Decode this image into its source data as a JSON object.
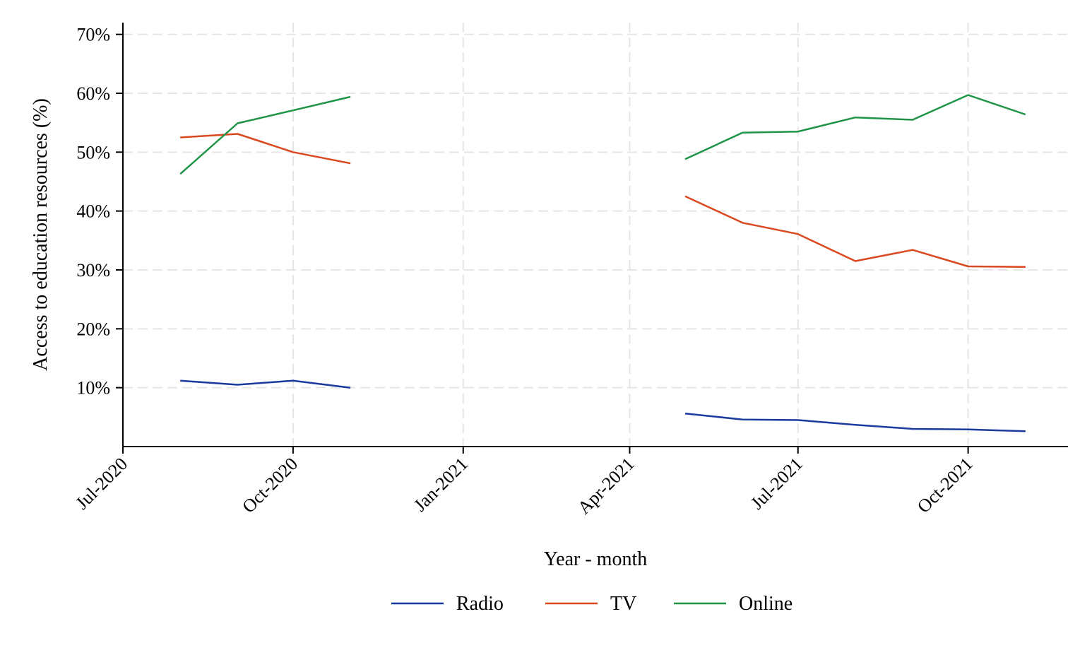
{
  "chart_data": {
    "type": "line",
    "title": "",
    "xlabel": "Year - month",
    "ylabel": "Access to education resources (%)",
    "ylim": [
      0,
      72
    ],
    "xlim": [
      "2020-07-01",
      "2021-11-24"
    ],
    "grid": true,
    "legend_position": "bottom",
    "y_ticks": [
      {
        "value": 10,
        "label": "10%"
      },
      {
        "value": 20,
        "label": "20%"
      },
      {
        "value": 30,
        "label": "30%"
      },
      {
        "value": 40,
        "label": "40%"
      },
      {
        "value": 50,
        "label": "50%"
      },
      {
        "value": 60,
        "label": "60%"
      },
      {
        "value": 70,
        "label": "70%"
      }
    ],
    "x_ticks": [
      {
        "date": "2020-07-01",
        "label": "Jul-2020"
      },
      {
        "date": "2020-10-01",
        "label": "Oct-2020"
      },
      {
        "date": "2021-01-01",
        "label": "Jan-2021"
      },
      {
        "date": "2021-04-01",
        "label": "Apr-2021"
      },
      {
        "date": "2021-07-01",
        "label": "Jul-2021"
      },
      {
        "date": "2021-10-01",
        "label": "Oct-2021"
      }
    ],
    "series": [
      {
        "name": "Radio",
        "color": "#1a3a9e",
        "segments": [
          [
            {
              "x": "2020-08-01",
              "y": 11.2
            },
            {
              "x": "2020-09-01",
              "y": 10.5
            },
            {
              "x": "2020-10-01",
              "y": 11.2
            },
            {
              "x": "2020-11-01",
              "y": 10.0
            }
          ],
          [
            {
              "x": "2021-05-01",
              "y": 5.6
            },
            {
              "x": "2021-06-01",
              "y": 4.6
            },
            {
              "x": "2021-07-01",
              "y": 4.5
            },
            {
              "x": "2021-08-01",
              "y": 3.7
            },
            {
              "x": "2021-09-01",
              "y": 3.0
            },
            {
              "x": "2021-10-01",
              "y": 2.9
            },
            {
              "x": "2021-11-01",
              "y": 2.6
            }
          ]
        ]
      },
      {
        "name": "TV",
        "color": "#d9481f",
        "segments": [
          [
            {
              "x": "2020-08-01",
              "y": 52.5
            },
            {
              "x": "2020-09-01",
              "y": 53.1
            },
            {
              "x": "2020-10-01",
              "y": 50.0
            },
            {
              "x": "2020-11-01",
              "y": 48.1
            }
          ],
          [
            {
              "x": "2021-05-01",
              "y": 42.5
            },
            {
              "x": "2021-06-01",
              "y": 38.0
            },
            {
              "x": "2021-07-01",
              "y": 36.1
            },
            {
              "x": "2021-08-01",
              "y": 31.5
            },
            {
              "x": "2021-09-01",
              "y": 33.4
            },
            {
              "x": "2021-10-01",
              "y": 30.6
            },
            {
              "x": "2021-11-01",
              "y": 30.5
            }
          ]
        ]
      },
      {
        "name": "Online",
        "color": "#1f9447",
        "segments": [
          [
            {
              "x": "2020-08-01",
              "y": 46.3
            },
            {
              "x": "2020-09-01",
              "y": 54.9
            },
            {
              "x": "2020-10-01",
              "y": 57.1
            },
            {
              "x": "2020-11-01",
              "y": 59.4
            }
          ],
          [
            {
              "x": "2021-05-01",
              "y": 48.8
            },
            {
              "x": "2021-06-01",
              "y": 53.3
            },
            {
              "x": "2021-07-01",
              "y": 53.5
            },
            {
              "x": "2021-08-01",
              "y": 55.9
            },
            {
              "x": "2021-09-01",
              "y": 55.5
            },
            {
              "x": "2021-10-01",
              "y": 59.7
            },
            {
              "x": "2021-11-01",
              "y": 56.4
            }
          ]
        ]
      }
    ]
  }
}
